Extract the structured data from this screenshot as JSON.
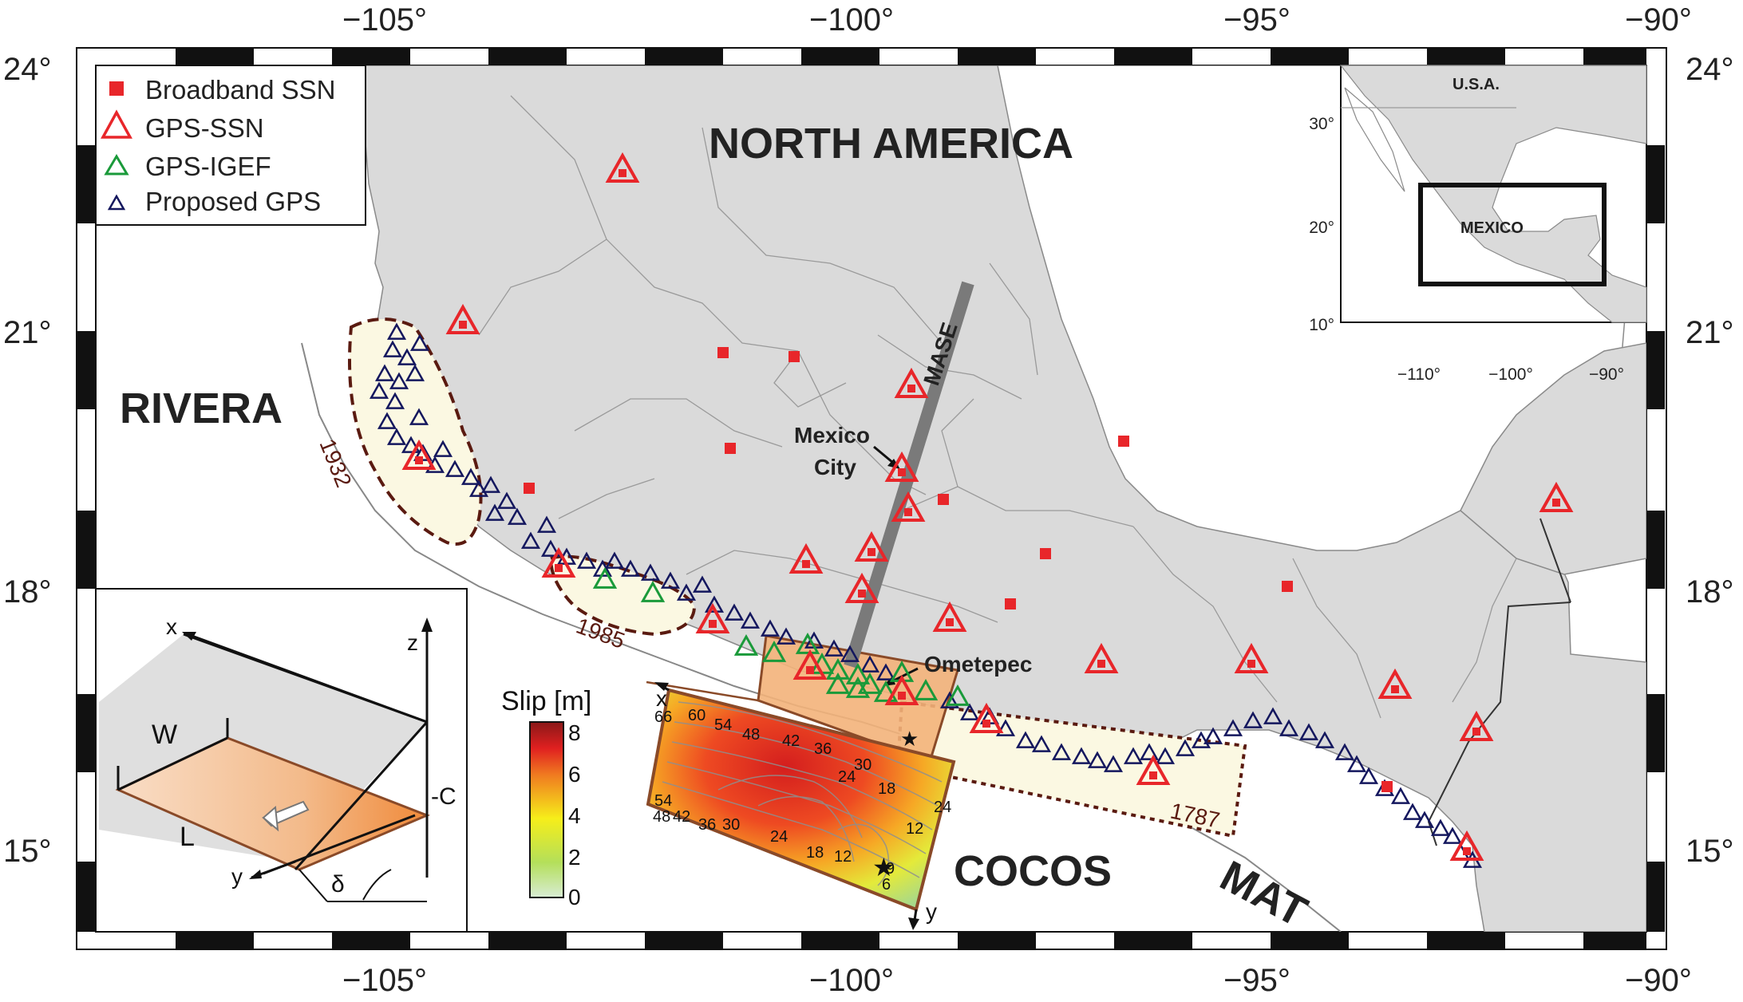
{
  "axes": {
    "lon_ticks": [
      "−105°",
      "−100°",
      "−95°",
      "−90°"
    ],
    "lat_ticks": [
      "24°",
      "21°",
      "18°",
      "15°"
    ]
  },
  "plates": {
    "north_america": "NORTH AMERICA",
    "rivera": "RIVERA",
    "cocos": "COCOS",
    "mat": "MAT"
  },
  "legend": {
    "items": [
      {
        "label": "Broadband SSN",
        "symbol": "square",
        "color": "#e8262a"
      },
      {
        "label": "GPS-SSN",
        "symbol": "triangle",
        "color": "#e8262a"
      },
      {
        "label": "GPS-IGEF",
        "symbol": "triangle",
        "color": "#1a9a3a"
      },
      {
        "label": "Proposed GPS",
        "symbol": "triangle",
        "color": "#14175e"
      }
    ]
  },
  "labels": {
    "mase": "MASE",
    "mexico_city_line1": "Mexico",
    "mexico_city_line2": "City",
    "ometepec": "Ometepec"
  },
  "rupture_years": [
    "1932",
    "1985",
    "1787"
  ],
  "inset_map": {
    "country_labels": [
      "U.S.A.",
      "MEXICO"
    ],
    "lat_ticks": [
      "30°",
      "20°",
      "10°"
    ],
    "lon_ticks": [
      "−110°",
      "−100°",
      "−90°"
    ]
  },
  "slip_model": {
    "colorbar_title": "Slip [m]",
    "colorbar_ticks": [
      "8",
      "6",
      "4",
      "2",
      "0"
    ],
    "axis_x": "x",
    "axis_y": "y",
    "contour_labels": [
      "66",
      "60",
      "54",
      "48",
      "42",
      "36",
      "30",
      "24",
      "18",
      "54",
      "48",
      "42",
      "36",
      "30",
      "24",
      "18",
      "12",
      "24",
      "12",
      "9",
      "6"
    ]
  },
  "fault_diagram": {
    "labels": [
      "x",
      "z",
      "W",
      "L",
      "-C",
      "y",
      "δ"
    ]
  },
  "colors": {
    "land": "#dadada",
    "ocean": "#ffffff",
    "station_red": "#e8262a",
    "gps_igef_green": "#1a9a3a",
    "proposed_navy": "#14175e",
    "rupture_fill": "#fbf8e2",
    "rupture_border": "#5a1a10",
    "fault_patch": "#f3b27a",
    "mase_line": "#7a7a7a"
  }
}
